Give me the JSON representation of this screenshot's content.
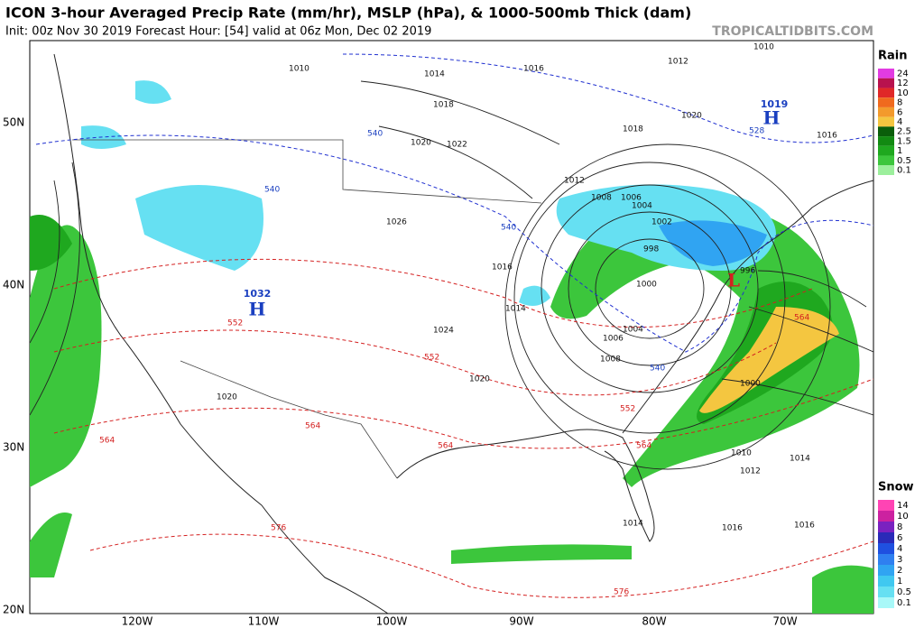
{
  "header": {
    "title": "ICON 3-hour Averaged Precip Rate (mm/hr), MSLP (hPa), & 1000-500mb Thick (dam)",
    "subtitle": "Init: 00z Nov 30 2019   Forecast Hour: [54]   valid at 06z Mon, Dec 02 2019",
    "site": "TROPICALTIDBITS.COM"
  },
  "map": {
    "lat_labels": [
      "50N",
      "40N",
      "30N",
      "20N"
    ],
    "lon_labels": [
      "120W",
      "110W",
      "100W",
      "90W",
      "80W",
      "70W"
    ],
    "pressure_centers": [
      {
        "letter": "H",
        "value": "1019"
      },
      {
        "letter": "H",
        "value": "1032"
      },
      {
        "letter": "L"
      }
    ],
    "isobar_labels": [
      "1010",
      "1014",
      "1016",
      "1018",
      "1012",
      "1010",
      "1020",
      "1022",
      "1026",
      "1024",
      "1020",
      "1016",
      "1014",
      "1012",
      "1008",
      "1006",
      "1004",
      "1002",
      "1000",
      "998",
      "996",
      "1000",
      "1004",
      "1006",
      "1008",
      "1010",
      "1012",
      "1014",
      "1016",
      "1018",
      "1020",
      "1022",
      "1020",
      "1016",
      "1014",
      "1016"
    ],
    "thickness_labels": [
      "540",
      "540",
      "540",
      "528",
      "552",
      "552",
      "552",
      "564",
      "564",
      "564",
      "564",
      "576",
      "576",
      "540",
      "564"
    ]
  },
  "legends": [
    {
      "title": "Rain",
      "items": [
        {
          "label": "24",
          "color": "#e23be2"
        },
        {
          "label": "12",
          "color": "#b8124e"
        },
        {
          "label": "10",
          "color": "#e02828"
        },
        {
          "label": "8",
          "color": "#f06a1e"
        },
        {
          "label": "6",
          "color": "#f39a2c"
        },
        {
          "label": "4",
          "color": "#f4c640"
        },
        {
          "label": "2.5",
          "color": "#0a5e0a"
        },
        {
          "label": "1.5",
          "color": "#128a12"
        },
        {
          "label": "1",
          "color": "#1fa81f"
        },
        {
          "label": "0.5",
          "color": "#3cc63c"
        },
        {
          "label": "0.1",
          "color": "#9cef9c"
        }
      ]
    },
    {
      "title": "Snow",
      "items": [
        {
          "label": "14",
          "color": "#ff44b4"
        },
        {
          "label": "10",
          "color": "#cc22a0"
        },
        {
          "label": "8",
          "color": "#7a22c0"
        },
        {
          "label": "6",
          "color": "#2a2ab8"
        },
        {
          "label": "4",
          "color": "#1f50e0"
        },
        {
          "label": "3",
          "color": "#2f80f0"
        },
        {
          "label": "2",
          "color": "#30a4f2"
        },
        {
          "label": "1",
          "color": "#40c8f0"
        },
        {
          "label": "0.5",
          "color": "#66e0f2"
        },
        {
          "label": "0.1",
          "color": "#a8f8f8"
        }
      ]
    }
  ]
}
